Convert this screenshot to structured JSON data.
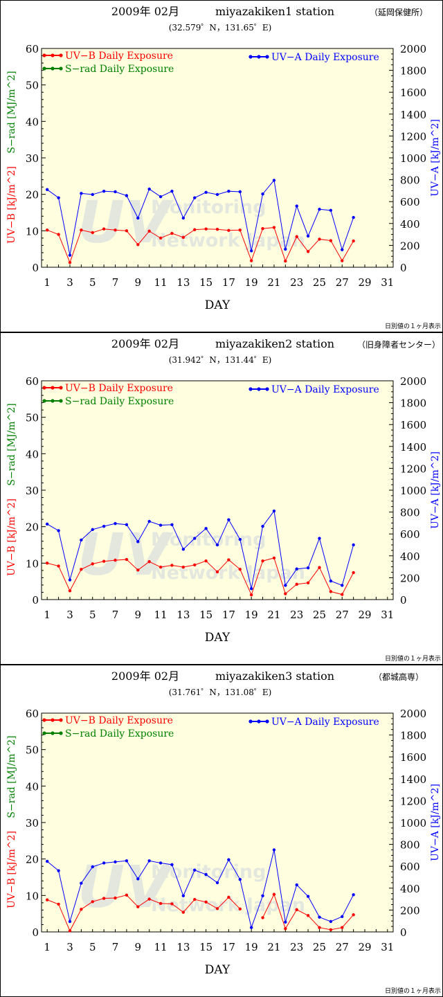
{
  "chart_data": [
    {
      "type": "line",
      "title_date": "2009年 02月",
      "title_station": "miyazakiken1 station",
      "title_site": "（延岡保健所）",
      "coords": "(32.579゜N，131.65゜E)",
      "xlabel": "DAY",
      "ylabel_left_uvb": "UV−B [kJ/m^2]",
      "ylabel_left_srad": "S−rad [MJ/m^2]",
      "ylabel_right": "UV−A [kJ/m^2]",
      "xlim": [
        0.5,
        31.5
      ],
      "ylim_left": [
        0,
        60
      ],
      "ylim_right": [
        0,
        2000
      ],
      "x_ticks": [
        1,
        3,
        5,
        7,
        9,
        11,
        13,
        15,
        17,
        19,
        21,
        23,
        25,
        27,
        29,
        31
      ],
      "y_left_ticks": [
        0,
        10,
        20,
        30,
        40,
        50,
        60
      ],
      "y_right_ticks": [
        0,
        200,
        400,
        600,
        800,
        1000,
        1200,
        1400,
        1600,
        1800,
        2000
      ],
      "legend": {
        "uvb": "UV−B Daily Exposure",
        "srad": "S−rad Daily Exposure",
        "uva": "UV−A  Daily Exposure"
      },
      "footnote": "日別値の１ヶ月表示",
      "watermark": "UV Monitoring Network Japan",
      "x": [
        1,
        2,
        3,
        4,
        5,
        6,
        7,
        8,
        9,
        10,
        11,
        12,
        13,
        14,
        15,
        16,
        17,
        18,
        19,
        20,
        21,
        22,
        23,
        24,
        25,
        26,
        27,
        28
      ],
      "series": [
        {
          "name": "UV−B Daily Exposure",
          "axis": "left",
          "color": "#ff0000",
          "values": [
            10.2,
            9.0,
            1.3,
            10.2,
            9.5,
            10.5,
            10.2,
            10.0,
            6.2,
            9.9,
            8.0,
            9.3,
            8.2,
            10.3,
            10.5,
            10.4,
            10.1,
            10.2,
            1.8,
            10.6,
            10.9,
            1.7,
            8.4,
            4.3,
            7.7,
            7.3,
            1.8,
            7.2
          ]
        },
        {
          "name": "UV−A  Daily Exposure",
          "axis": "right",
          "color": "#0000ff",
          "values": [
            710,
            635,
            110,
            675,
            665,
            695,
            690,
            655,
            450,
            715,
            645,
            695,
            450,
            635,
            685,
            665,
            695,
            690,
            150,
            670,
            795,
            165,
            560,
            285,
            530,
            520,
            160,
            455
          ]
        }
      ]
    },
    {
      "type": "line",
      "title_date": "2009年 02月",
      "title_station": "miyazakiken2 station",
      "title_site": "（旧身障者センター）",
      "coords": "(31.942゜N，131.44゜E)",
      "xlabel": "DAY",
      "ylabel_left_uvb": "UV−B [kJ/m^2]",
      "ylabel_left_srad": "S−rad [MJ/m^2]",
      "ylabel_right": "UV−A [kJ/m^2]",
      "xlim": [
        0.5,
        31.5
      ],
      "ylim_left": [
        0,
        60
      ],
      "ylim_right": [
        0,
        2000
      ],
      "x_ticks": [
        1,
        3,
        5,
        7,
        9,
        11,
        13,
        15,
        17,
        19,
        21,
        23,
        25,
        27,
        29,
        31
      ],
      "y_left_ticks": [
        0,
        10,
        20,
        30,
        40,
        50,
        60
      ],
      "y_right_ticks": [
        0,
        200,
        400,
        600,
        800,
        1000,
        1200,
        1400,
        1600,
        1800,
        2000
      ],
      "legend": {
        "uvb": "UV−B Daily Exposure",
        "srad": "S−rad Daily Exposure",
        "uva": "UV−A  Daily Exposure"
      },
      "footnote": "日別値の１ヶ月表示",
      "watermark": "UV Monitoring Network Japan",
      "x": [
        1,
        2,
        3,
        4,
        5,
        6,
        7,
        8,
        9,
        10,
        11,
        12,
        13,
        14,
        15,
        16,
        17,
        18,
        19,
        20,
        21,
        22,
        23,
        24,
        25,
        26,
        27,
        28
      ],
      "series": [
        {
          "name": "UV−B Daily Exposure",
          "axis": "left",
          "color": "#ff0000",
          "values": [
            10.0,
            9.2,
            2.4,
            8.3,
            9.8,
            10.5,
            10.8,
            11.0,
            8.1,
            10.4,
            8.9,
            9.4,
            8.9,
            9.5,
            10.6,
            7.6,
            10.9,
            8.3,
            1.3,
            10.6,
            11.4,
            1.6,
            4.2,
            4.6,
            8.8,
            2.2,
            1.4,
            7.4
          ]
        },
        {
          "name": "UV−A  Daily Exposure",
          "axis": "right",
          "color": "#0000ff",
          "values": [
            690,
            630,
            180,
            545,
            640,
            670,
            695,
            685,
            530,
            715,
            680,
            685,
            460,
            560,
            650,
            500,
            730,
            550,
            100,
            670,
            810,
            130,
            280,
            290,
            560,
            170,
            130,
            500
          ]
        }
      ]
    },
    {
      "type": "line",
      "title_date": "2009年 02月",
      "title_station": "miyazakiken3 station",
      "title_site": "（都城高専）",
      "coords": "(31.761゜N，131.08゜E)",
      "xlabel": "DAY",
      "ylabel_left_uvb": "UV−B [kJ/m^2]",
      "ylabel_left_srad": "S−rad [MJ/m^2]",
      "ylabel_right": "UV−A [kJ/m^2]",
      "xlim": [
        0.5,
        31.5
      ],
      "ylim_left": [
        0,
        60
      ],
      "ylim_right": [
        0,
        2000
      ],
      "x_ticks": [
        1,
        3,
        5,
        7,
        9,
        11,
        13,
        15,
        17,
        19,
        21,
        23,
        25,
        27,
        29,
        31
      ],
      "y_left_ticks": [
        0,
        10,
        20,
        30,
        40,
        50,
        60
      ],
      "y_right_ticks": [
        0,
        200,
        400,
        600,
        800,
        1000,
        1200,
        1400,
        1600,
        1800,
        2000
      ],
      "legend": {
        "uvb": "UV−B Daily Exposure",
        "srad": "S−rad Daily Exposure",
        "uva": "UV−A  Daily Exposure"
      },
      "footnote": "日別値の１ヶ月表示",
      "watermark": "UV Monitoring Network Japan",
      "x": [
        1,
        2,
        3,
        4,
        5,
        6,
        7,
        8,
        9,
        10,
        11,
        12,
        13,
        14,
        15,
        16,
        17,
        18,
        19,
        20,
        21,
        22,
        23,
        24,
        25,
        26,
        27,
        28
      ],
      "series": [
        {
          "name": "UV−B Daily Exposure",
          "axis": "left",
          "color": "#ff0000",
          "values": [
            8.8,
            7.6,
            0.3,
            6.2,
            8.3,
            9.2,
            9.3,
            10.1,
            6.9,
            9.0,
            7.8,
            7.7,
            5.4,
            8.9,
            8.2,
            6.4,
            9.5,
            6.3,
            null,
            3.9,
            10.3,
            0.9,
            6.1,
            4.5,
            1.2,
            0.6,
            1.2,
            4.7
          ]
        },
        {
          "name": "UV−A  Daily Exposure",
          "axis": "right",
          "color": "#0000ff",
          "values": [
            645,
            560,
            95,
            445,
            595,
            630,
            640,
            650,
            485,
            650,
            630,
            615,
            330,
            565,
            525,
            450,
            660,
            480,
            40,
            330,
            750,
            90,
            430,
            325,
            135,
            95,
            140,
            340
          ]
        }
      ]
    }
  ]
}
